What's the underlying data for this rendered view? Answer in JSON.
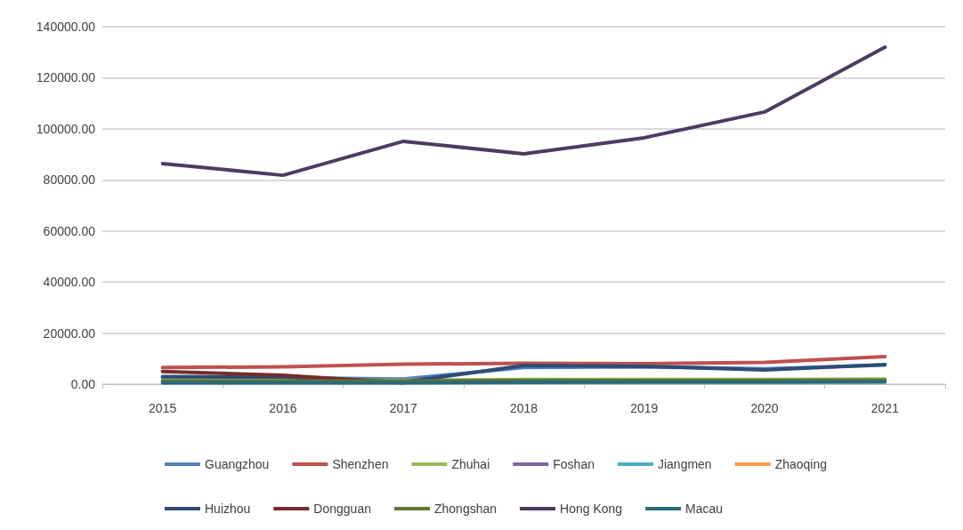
{
  "chart_data": {
    "type": "line",
    "categories": [
      "2015",
      "2016",
      "2017",
      "2018",
      "2019",
      "2020",
      "2021"
    ],
    "series": [
      {
        "name": "Guangzhou",
        "color": "#4f81bd",
        "values": [
          2500,
          2500,
          2000,
          6500,
          6800,
          6000,
          7500
        ]
      },
      {
        "name": "Shenzhen",
        "color": "#c0504d",
        "values": [
          6500,
          6800,
          7800,
          8200,
          8000,
          8500,
          10800
        ]
      },
      {
        "name": "Zhuhai",
        "color": "#9bbb59",
        "values": [
          1500,
          1500,
          1500,
          1800,
          1800,
          1800,
          2000
        ]
      },
      {
        "name": "Foshan",
        "color": "#8064a2",
        "values": [
          null,
          null,
          null,
          null,
          null,
          null,
          null
        ]
      },
      {
        "name": "Jiangmen",
        "color": "#4bacc6",
        "values": [
          null,
          null,
          null,
          null,
          null,
          null,
          null
        ]
      },
      {
        "name": "Zhaoqing",
        "color": "#f79646",
        "values": [
          null,
          null,
          null,
          null,
          null,
          null,
          null
        ]
      },
      {
        "name": "Huizhou",
        "color": "#2c4d75",
        "values": [
          3000,
          2800,
          800,
          7300,
          7000,
          5600,
          7700
        ]
      },
      {
        "name": "Dongguan",
        "color": "#772c2a",
        "values": [
          5000,
          3500,
          500,
          null,
          null,
          null,
          null
        ]
      },
      {
        "name": "Zhongshan",
        "color": "#5f7530",
        "values": [
          1200,
          1200,
          1200,
          1500,
          1500,
          1500,
          1600
        ]
      },
      {
        "name": "Hong Kong",
        "color": "#4d3b62",
        "values": [
          86400,
          81800,
          95100,
          90200,
          96500,
          106600,
          132000
        ]
      },
      {
        "name": "Macau",
        "color": "#276a7c",
        "values": [
          500,
          500,
          500,
          700,
          800,
          800,
          900
        ]
      }
    ],
    "ylim": [
      0,
      140000
    ],
    "yticks": [
      {
        "value": 0,
        "label": "0.00"
      },
      {
        "value": 20000,
        "label": "20000.00"
      },
      {
        "value": 40000,
        "label": "40000.00"
      },
      {
        "value": 60000,
        "label": "60000.00"
      },
      {
        "value": 80000,
        "label": "80000.00"
      },
      {
        "value": 100000,
        "label": "100000.00"
      },
      {
        "value": 120000,
        "label": "120000.00"
      },
      {
        "value": 140000,
        "label": "140000.00"
      }
    ],
    "grid": "y",
    "legend": "bottom",
    "marker": "none",
    "line_style": "solid"
  }
}
